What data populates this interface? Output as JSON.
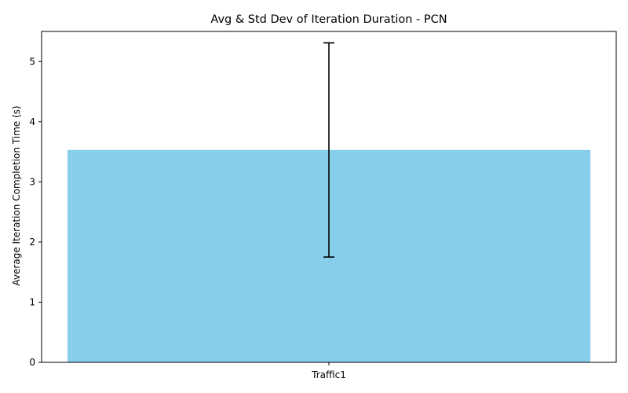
{
  "chart_data": {
    "type": "bar",
    "title": "Avg & Std Dev of Iteration Duration - PCN",
    "xlabel": "",
    "ylabel": "Average Iteration Completion Time (s)",
    "categories": [
      "Traffic1"
    ],
    "values": [
      3.53
    ],
    "errors": [
      1.78
    ],
    "ylim": [
      0,
      5.5
    ],
    "yticks": [
      0,
      1,
      2,
      3,
      4,
      5
    ],
    "grid": false,
    "bar_color": "#87ceeb",
    "error_color": "#000000"
  }
}
